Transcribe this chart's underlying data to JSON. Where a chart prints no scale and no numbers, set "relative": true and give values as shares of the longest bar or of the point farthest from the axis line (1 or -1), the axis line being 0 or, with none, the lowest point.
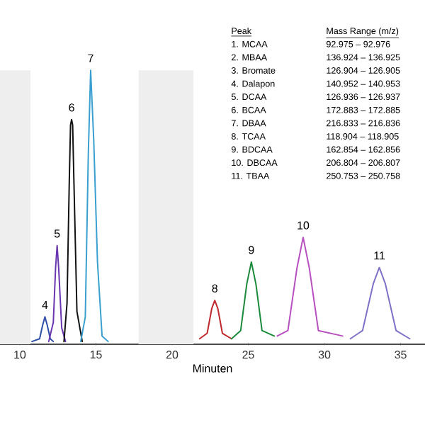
{
  "chart_data": {
    "type": "line",
    "relative": true,
    "xlabel": "Minuten",
    "xlim": [
      8.7,
      36.6
    ],
    "xticks": [
      10,
      15,
      20,
      25,
      30,
      35
    ],
    "grid": false,
    "legend": false,
    "marker": "none",
    "line_style": "solid",
    "bands": [
      {
        "axis": "x",
        "from": 8.7,
        "to": 10.7,
        "color": "#eeeeee"
      },
      {
        "axis": "x",
        "from": 17.8,
        "to": 21.4,
        "color": "#eeeeee"
      }
    ],
    "series": [
      {
        "name": "4",
        "color": "#2f4fa8",
        "x": [
          10.8,
          11.3,
          11.5,
          11.65,
          11.8,
          12.0,
          12.2
        ],
        "values": [
          0.01,
          0.02,
          0.07,
          0.1,
          0.07,
          0.02,
          0.01
        ]
      },
      {
        "name": "5",
        "color": "#6a35b0",
        "x": [
          11.9,
          12.2,
          12.35,
          12.45,
          12.55,
          12.75,
          13.0
        ],
        "values": [
          0.01,
          0.08,
          0.28,
          0.36,
          0.28,
          0.06,
          0.01
        ]
      },
      {
        "name": "6",
        "color": "#111111",
        "x": [
          12.9,
          13.1,
          13.25,
          13.33,
          13.4,
          13.47,
          13.55,
          13.75,
          14.1
        ],
        "values": [
          0.01,
          0.15,
          0.6,
          0.8,
          0.82,
          0.8,
          0.6,
          0.12,
          0.01
        ]
      },
      {
        "name": "7",
        "color": "#3a9fd0",
        "x": [
          14.0,
          14.3,
          14.5,
          14.65,
          14.85,
          15.1,
          15.4,
          15.8
        ],
        "values": [
          0.01,
          0.1,
          0.7,
          1,
          0.75,
          0.3,
          0.03,
          0.01
        ]
      },
      {
        "name": "8",
        "color": "#c0282d",
        "x": [
          21.8,
          22.3,
          22.6,
          22.8,
          23.0,
          23.3,
          23.9
        ],
        "values": [
          0.02,
          0.04,
          0.13,
          0.16,
          0.13,
          0.04,
          0.02
        ]
      },
      {
        "name": "9",
        "color": "#1a8a3a",
        "x": [
          23.9,
          24.5,
          24.9,
          25.2,
          25.5,
          25.9,
          26.7
        ],
        "values": [
          0.02,
          0.05,
          0.22,
          0.3,
          0.22,
          0.05,
          0.03
        ]
      },
      {
        "name": "10",
        "color": "#b84fc0",
        "x": [
          26.9,
          27.6,
          28.2,
          28.6,
          29.0,
          29.6,
          31.2
        ],
        "values": [
          0.03,
          0.05,
          0.28,
          0.39,
          0.28,
          0.05,
          0.03
        ]
      },
      {
        "name": "11",
        "color": "#8070c8",
        "x": [
          31.7,
          32.5,
          33.2,
          33.6,
          34.0,
          34.7,
          35.6
        ],
        "values": [
          0.02,
          0.05,
          0.22,
          0.28,
          0.22,
          0.05,
          0.02
        ]
      }
    ],
    "annotations": [
      "Peak",
      "Mass Range (m/z)",
      "1. MCAA",
      "92.975 – 92.976",
      "2. MBAA",
      "136.924 – 136.925",
      "3. Bromate",
      "126.904 – 126.905",
      "4. Dalapon",
      "140.952 – 140.953",
      "5. DCAA",
      "126.936 – 126.937",
      "6. BCAA",
      "172.883 – 172.885",
      "7. DBAA",
      "216.833 – 216.836",
      "8. TCAA",
      "118.904 – 118.905",
      "9. BDCAA",
      "162.854 – 162.856",
      "10. DBCAA",
      "206.804 – 206.807",
      "11. TBAA",
      "250.753 – 250.758"
    ]
  }
}
